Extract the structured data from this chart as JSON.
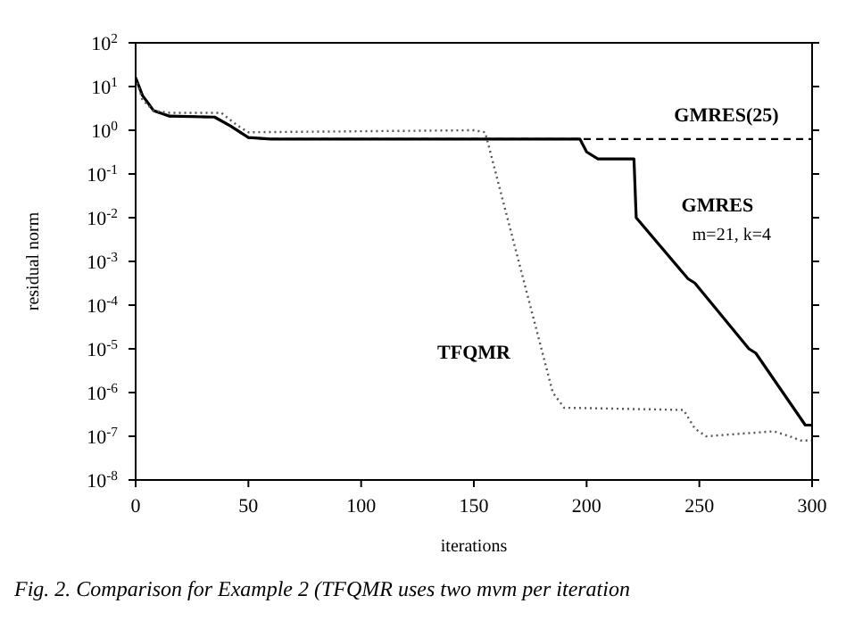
{
  "chart_data": {
    "type": "line",
    "xlabel": "iterations",
    "ylabel": "residual norm",
    "log": "y",
    "xlim": [
      0,
      300
    ],
    "xticks": [
      0,
      50,
      100,
      150,
      200,
      250,
      300
    ],
    "ylim": [
      1e-08,
      100
    ],
    "yticks": [
      {
        "value": 1e-08,
        "label": "10$^{-8}$"
      },
      {
        "value": 1e-07,
        "label": "10$^{-7}$"
      },
      {
        "value": 1e-06,
        "label": "10$^{-6}$"
      },
      {
        "value": 1e-05,
        "label": "10$^{-5}$"
      },
      {
        "value": 0.0001,
        "label": "10$^{-4}$"
      },
      {
        "value": 0.001,
        "label": "10$^{-3}$"
      },
      {
        "value": 0.01,
        "label": "10$^{-2}$"
      },
      {
        "value": 0.1,
        "label": "10$^{-1}$"
      },
      {
        "value": 1,
        "label": "10$^{0}$"
      },
      {
        "value": 10,
        "label": "10$^{1}$"
      },
      {
        "value": 100,
        "label": "10$^{2}$"
      }
    ],
    "marker": "none",
    "series": [
      {
        "name": "GMRES(25)",
        "color": "#000000",
        "line_style": "dashed",
        "x": [
          0,
          3,
          8,
          15,
          35,
          42,
          50,
          60,
          300
        ],
        "values": [
          16,
          6.3,
          2.8,
          2.1,
          2.0,
          1.26,
          0.68,
          0.63,
          0.63
        ]
      },
      {
        "name": "GMRES",
        "color": "#000000",
        "line_style": "solid",
        "x": [
          0,
          3,
          8,
          15,
          35,
          42,
          50,
          60,
          197,
          200,
          205,
          221,
          222,
          245,
          248,
          272,
          275,
          297,
          300
        ],
        "values": [
          16,
          6.3,
          2.8,
          2.1,
          2.0,
          1.26,
          0.68,
          0.63,
          0.63,
          0.32,
          0.22,
          0.22,
          0.01,
          0.0004,
          0.00032,
          1e-05,
          8e-06,
          1.8e-07,
          1.8e-07
        ]
      },
      {
        "name": "TFQMR",
        "color": "#555555",
        "line_style": "dotted",
        "x": [
          0,
          3,
          8,
          15,
          38,
          45,
          50,
          150,
          155,
          185,
          190,
          243,
          248,
          253,
          283,
          290,
          295,
          300
        ],
        "values": [
          16,
          5,
          2.8,
          2.5,
          2.5,
          1.3,
          0.9,
          1.0,
          0.9,
          1e-06,
          4.5e-07,
          4e-07,
          1.5e-07,
          1e-07,
          1.3e-07,
          1e-07,
          8e-08,
          8e-08
        ]
      }
    ],
    "annotations": [
      {
        "text": "m=21, k=4"
      },
      "Fig. 2. Comparison for Example 2 (TFQMR uses two mvm per iteration"
    ]
  }
}
